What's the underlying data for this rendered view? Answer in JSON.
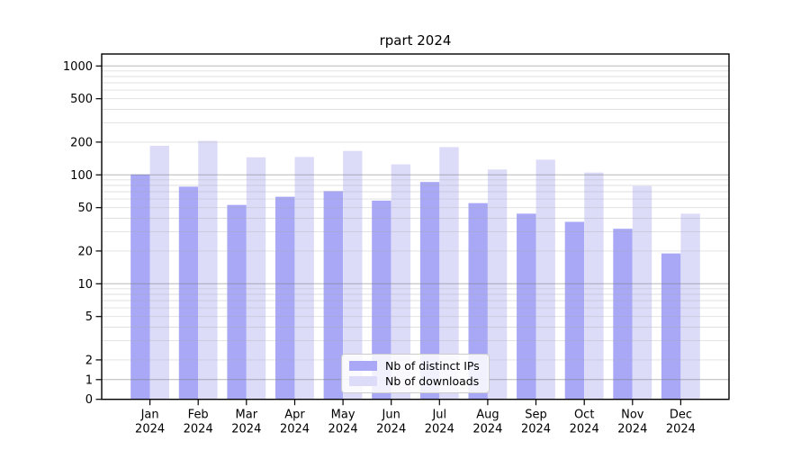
{
  "chart_data": {
    "type": "bar",
    "title": "rpart 2024",
    "yscale": "log",
    "grid": true,
    "legend_position": "lower center",
    "categories": [
      "Jan",
      "Feb",
      "Mar",
      "Apr",
      "May",
      "Jun",
      "Jul",
      "Aug",
      "Sep",
      "Oct",
      "Nov",
      "Dec"
    ],
    "x_year_label": "2024",
    "series": [
      {
        "name": "Nb of distinct IPs",
        "color": "#a8a8f6",
        "values": [
          101,
          78,
          53,
          63,
          71,
          58,
          86,
          55,
          44,
          37,
          32,
          19
        ]
      },
      {
        "name": "Nb of downloads",
        "color": "#dcdcf9",
        "values": [
          185,
          205,
          145,
          146,
          166,
          125,
          180,
          112,
          138,
          105,
          79,
          44
        ]
      }
    ],
    "ytick_labels": [
      "1000",
      "500",
      "200",
      "100",
      "50",
      "20",
      "10",
      "5",
      "2",
      "1",
      "0"
    ],
    "ytick_values": [
      1000,
      500,
      200,
      100,
      50,
      20,
      10,
      5,
      2,
      1,
      0
    ],
    "ylim": [
      0,
      1288
    ]
  }
}
